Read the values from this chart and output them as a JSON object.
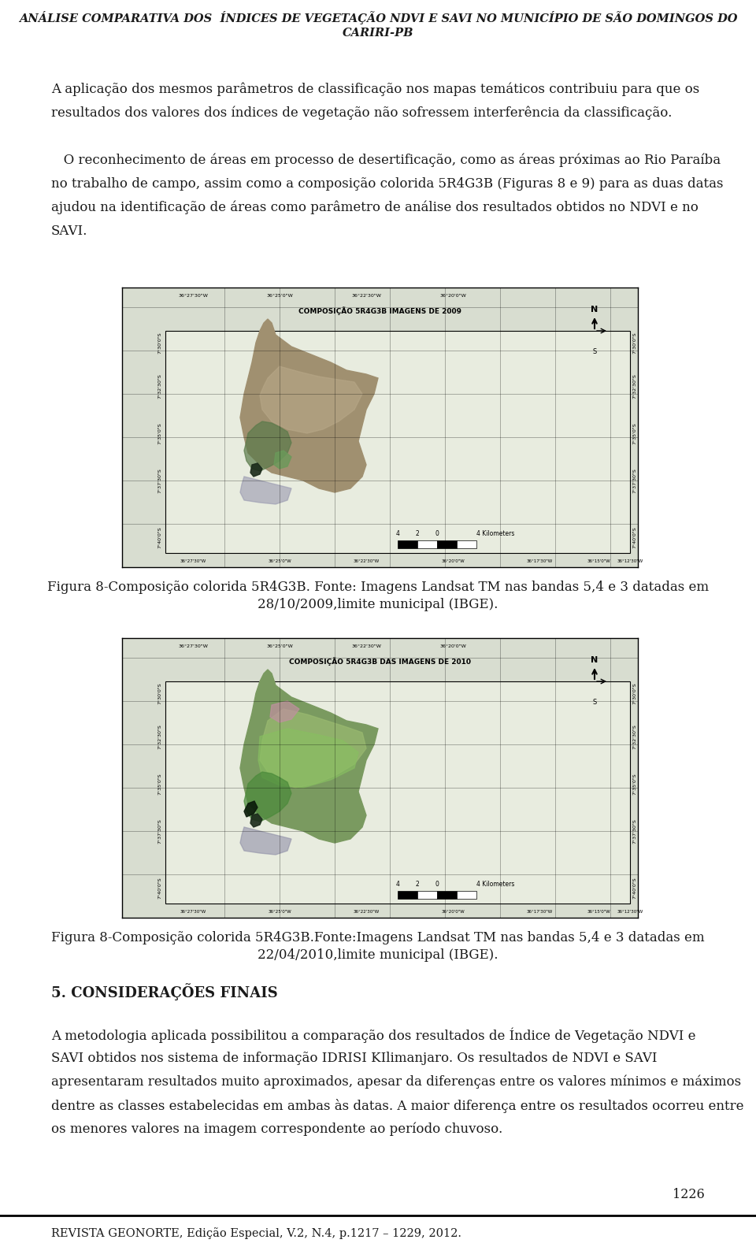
{
  "title_line1": "ANÁLISE COMPARATIVA DOS  ÍNDICES DE VEGETAÇÃO NDVI E SAVI NO MUNICÍPIO DE SÃO DOMINGOS DO",
  "title_line2": "CARIRI-PB",
  "para1_lines": [
    "A aplicação dos mesmos parâmetros de classificação nos mapas temáticos contribuiu para que os",
    "resultados dos valores dos índices de vegetação não sofressem interferência da classificação."
  ],
  "para2_lines": [
    "   O reconhecimento de áreas em processo de desertificação, como as áreas próximas ao Rio Paraíba",
    "no trabalho de campo, assim como a composição colorida 5R4G3B (Figuras 8 e 9) para as duas datas",
    "ajudou na identificação de áreas como parâmetro de análise dos resultados obtidos no NDVI e no",
    "SAVI."
  ],
  "fig1_caption_line1": "Figura 8-Composição colorida 5R4G3B. Fonte: Imagens Landsat TM nas bandas 5,4 e 3 datadas em",
  "fig1_caption_line2": "28/10/2009,limite municipal (IBGE).",
  "fig2_caption_line1": "Figura 8-Composição colorida 5R4G3B.Fonte:Imagens Landsat TM nas bandas 5,4 e 3 datadas em",
  "fig2_caption_line2": "22/04/2010,limite municipal (IBGE).",
  "section5": "5. CONSIDERAÇÕES FINAIS",
  "para3_lines": [
    "A metodologia aplicada possibilitou a comparação dos resultados de Índice de Vegetação NDVI e",
    "SAVI obtidos nos sistema de informação IDRISI KIlimanjaro. Os resultados de NDVI e SAVI",
    "apresentaram resultados muito aproximados, apesar da diferenças entre os valores mínimos e máximos",
    "dentre as classes estabelecidas em ambas às datas. A maior diferença entre os resultados ocorreu entre",
    "os menores valores na imagem correspondente ao período chuvoso."
  ],
  "page_num": "1226",
  "footer": "REVISTA GEONORTE, Edição Especial, V.2, N.4, p.1217 – 1229, 2012.",
  "bg_color": "#ffffff",
  "text_color": "#1a1a1a",
  "title_color": "#1a1a1a",
  "map1_title": "COMPOSIÇÃO 5R4G3B IMAGENS DE 2009",
  "map2_title": "COMPOSIÇÃO 5R4G3B DAS IMAGENS DE 2010",
  "map_top_labels": [
    "36°27'30\"W",
    "36°25'0\"W",
    "36°22'30\"W",
    "36°20'0\"W"
  ],
  "map_bottom_labels": [
    "36°27'30\"W",
    "36°25'0\"W",
    "36°22'30\"W",
    "36°20'0\"W",
    "36°17'30\"W",
    "36°15'0\"W",
    "36°12'30\"W"
  ],
  "map_left_labels": [
    "7°30'0\"S",
    "7°32'30\"S",
    "7°35'0\"S",
    "7°37'30\"S",
    "7°40'0\"S"
  ],
  "map_right_labels": [
    "7°30'0\"S",
    "7°32'30\"S",
    "7°35'0\"S",
    "7°37'30\"S",
    "7°40'0\"S"
  ]
}
